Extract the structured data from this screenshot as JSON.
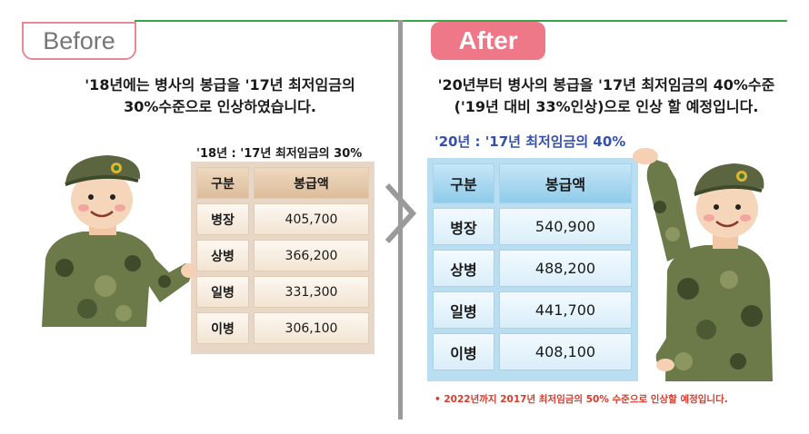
{
  "before": {
    "label": "Before",
    "heading_line1": "'18년에는 병사의 봉급을 '17년 최저임금의",
    "heading_line2": "30%수준으로 인상하였습니다.",
    "subtitle": "'18년 : '17년 최저임금의 30%",
    "table": {
      "headers": [
        "구분",
        "봉급액"
      ],
      "rows": [
        [
          "병장",
          "405,700"
        ],
        [
          "상병",
          "366,200"
        ],
        [
          "일병",
          "331,300"
        ],
        [
          "이병",
          "306,100"
        ]
      ]
    }
  },
  "after": {
    "label": "After",
    "heading_line1": "'20년부터 병사의 봉급을 '17년 최저임금의 40%수준",
    "heading_line2": "('19년 대비 33%인상)으로 인상 할 예정입니다.",
    "subtitle": "'20년 : '17년 최저임금의 40%",
    "table": {
      "headers": [
        "구분",
        "봉급액"
      ],
      "rows": [
        [
          "병장",
          "540,900"
        ],
        [
          "상병",
          "488,200"
        ],
        [
          "일병",
          "441,700"
        ],
        [
          "이병",
          "408,100"
        ]
      ]
    },
    "footnote": "• 2022년까지 2017년 최저임금의 50% 수준으로 인상할 예정입니다."
  },
  "colors": {
    "accent_line": "#37a84a",
    "before_tag": "#e58a95",
    "after_tag": "#ee7788",
    "subtitle_after": "#3550a8",
    "footnote": "#d83a2c"
  }
}
